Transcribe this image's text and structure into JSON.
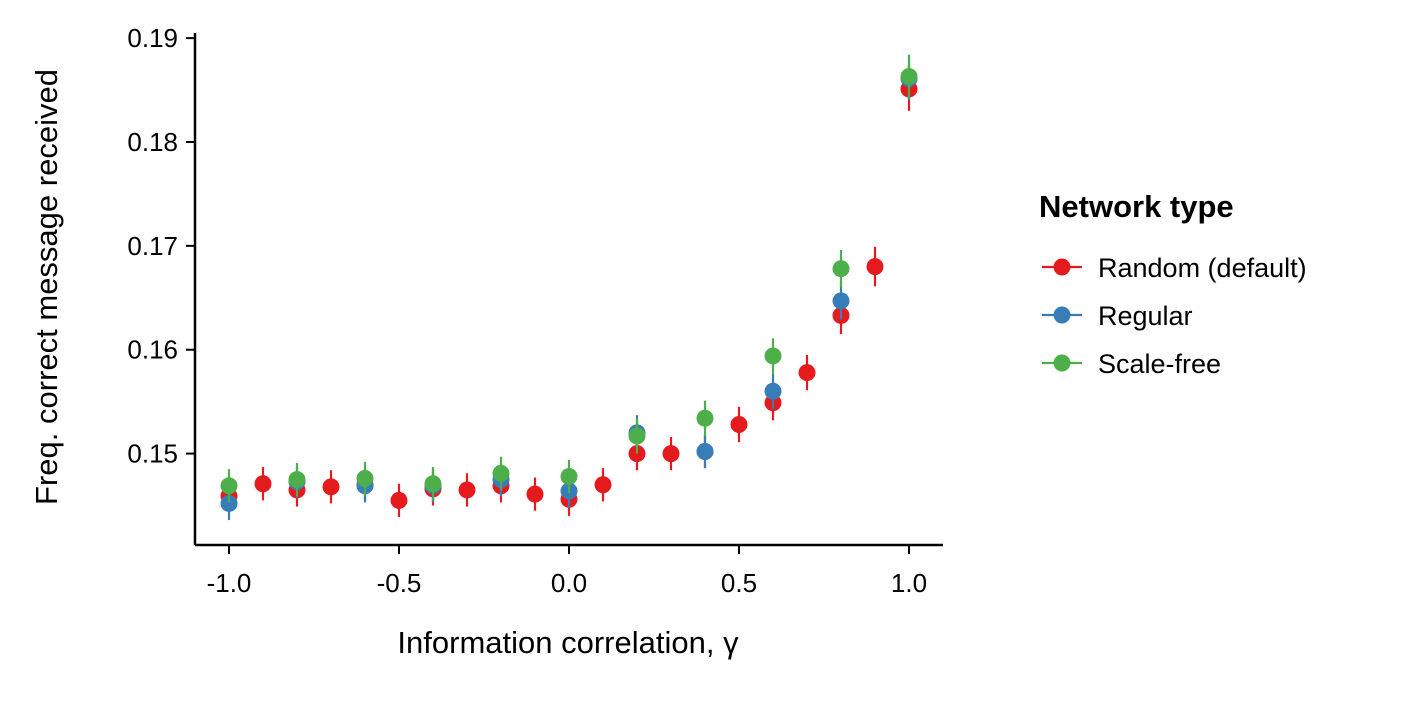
{
  "chart_data": {
    "type": "scatter",
    "xlabel": "Information correlation, γ",
    "ylabel": "Freq. correct message received",
    "xlim": [
      -1.1,
      1.1
    ],
    "ylim": [
      0.1412,
      0.1903
    ],
    "x_ticks": [
      -1.0,
      -0.5,
      0.0,
      0.5,
      1.0
    ],
    "x_tick_labels": [
      "-1.0",
      "-0.5",
      "0.0",
      "0.5",
      "1.0"
    ],
    "y_ticks": [
      0.15,
      0.16,
      0.17,
      0.18,
      0.19
    ],
    "y_tick_labels": [
      "0.15",
      "0.16",
      "0.17",
      "0.18",
      "0.19"
    ],
    "grid": false,
    "legend_title": "Network type",
    "legend_position": "right",
    "series": [
      {
        "name": "Random (default)",
        "color": "#E41A1C",
        "points": [
          {
            "x": -1.0,
            "y": 0.1459,
            "lo": 0.1444,
            "hi": 0.1474
          },
          {
            "x": -0.9,
            "y": 0.1471,
            "lo": 0.1455,
            "hi": 0.1487
          },
          {
            "x": -0.8,
            "y": 0.1465,
            "lo": 0.1449,
            "hi": 0.1481
          },
          {
            "x": -0.7,
            "y": 0.1468,
            "lo": 0.1452,
            "hi": 0.1484
          },
          {
            "x": -0.6,
            "y": 0.147,
            "lo": 0.1454,
            "hi": 0.1486
          },
          {
            "x": -0.5,
            "y": 0.1455,
            "lo": 0.1439,
            "hi": 0.1471
          },
          {
            "x": -0.4,
            "y": 0.1466,
            "lo": 0.145,
            "hi": 0.1482
          },
          {
            "x": -0.3,
            "y": 0.1465,
            "lo": 0.1449,
            "hi": 0.1481
          },
          {
            "x": -0.2,
            "y": 0.1469,
            "lo": 0.1453,
            "hi": 0.1485
          },
          {
            "x": -0.1,
            "y": 0.1461,
            "lo": 0.1445,
            "hi": 0.1477
          },
          {
            "x": 0.0,
            "y": 0.1456,
            "lo": 0.144,
            "hi": 0.1472
          },
          {
            "x": 0.1,
            "y": 0.147,
            "lo": 0.1454,
            "hi": 0.1486
          },
          {
            "x": 0.2,
            "y": 0.15,
            "lo": 0.1484,
            "hi": 0.1516
          },
          {
            "x": 0.3,
            "y": 0.15,
            "lo": 0.1484,
            "hi": 0.1516
          },
          {
            "x": 0.4,
            "y": 0.1502,
            "lo": 0.1486,
            "hi": 0.1518
          },
          {
            "x": 0.5,
            "y": 0.1528,
            "lo": 0.1511,
            "hi": 0.1545
          },
          {
            "x": 0.6,
            "y": 0.1549,
            "lo": 0.1532,
            "hi": 0.1566
          },
          {
            "x": 0.7,
            "y": 0.1578,
            "lo": 0.1561,
            "hi": 0.1595
          },
          {
            "x": 0.8,
            "y": 0.1633,
            "lo": 0.1615,
            "hi": 0.1651
          },
          {
            "x": 0.9,
            "y": 0.168,
            "lo": 0.1661,
            "hi": 0.1699
          },
          {
            "x": 1.0,
            "y": 0.1851,
            "lo": 0.183,
            "hi": 0.1872
          }
        ]
      },
      {
        "name": "Regular",
        "color": "#377EB8",
        "points": [
          {
            "x": -1.0,
            "y": 0.1452,
            "lo": 0.1436,
            "hi": 0.1468
          },
          {
            "x": -0.8,
            "y": 0.1473,
            "lo": 0.1457,
            "hi": 0.1489
          },
          {
            "x": -0.6,
            "y": 0.1469,
            "lo": 0.1453,
            "hi": 0.1485
          },
          {
            "x": -0.4,
            "y": 0.1469,
            "lo": 0.1453,
            "hi": 0.1485
          },
          {
            "x": -0.2,
            "y": 0.1475,
            "lo": 0.1459,
            "hi": 0.1491
          },
          {
            "x": 0.0,
            "y": 0.1464,
            "lo": 0.1448,
            "hi": 0.148
          },
          {
            "x": 0.2,
            "y": 0.152,
            "lo": 0.1503,
            "hi": 0.1537
          },
          {
            "x": 0.4,
            "y": 0.1502,
            "lo": 0.1486,
            "hi": 0.1518
          },
          {
            "x": 0.6,
            "y": 0.156,
            "lo": 0.1543,
            "hi": 0.1577
          },
          {
            "x": 0.8,
            "y": 0.1647,
            "lo": 0.1629,
            "hi": 0.1665
          },
          {
            "x": 1.0,
            "y": 0.1861,
            "lo": 0.184,
            "hi": 0.1882
          }
        ]
      },
      {
        "name": "Scale-free",
        "color": "#4DAF4A",
        "points": [
          {
            "x": -1.0,
            "y": 0.1469,
            "lo": 0.1453,
            "hi": 0.1485
          },
          {
            "x": -0.8,
            "y": 0.1475,
            "lo": 0.1459,
            "hi": 0.1491
          },
          {
            "x": -0.6,
            "y": 0.1476,
            "lo": 0.146,
            "hi": 0.1492
          },
          {
            "x": -0.4,
            "y": 0.1471,
            "lo": 0.1455,
            "hi": 0.1487
          },
          {
            "x": -0.2,
            "y": 0.1481,
            "lo": 0.1465,
            "hi": 0.1497
          },
          {
            "x": 0.0,
            "y": 0.1478,
            "lo": 0.1462,
            "hi": 0.1494
          },
          {
            "x": 0.2,
            "y": 0.1517,
            "lo": 0.15,
            "hi": 0.1534
          },
          {
            "x": 0.4,
            "y": 0.1534,
            "lo": 0.1517,
            "hi": 0.1551
          },
          {
            "x": 0.6,
            "y": 0.1594,
            "lo": 0.1577,
            "hi": 0.1611
          },
          {
            "x": 0.8,
            "y": 0.1678,
            "lo": 0.166,
            "hi": 0.1696
          },
          {
            "x": 1.0,
            "y": 0.1863,
            "lo": 0.1842,
            "hi": 0.1884
          }
        ]
      }
    ]
  }
}
